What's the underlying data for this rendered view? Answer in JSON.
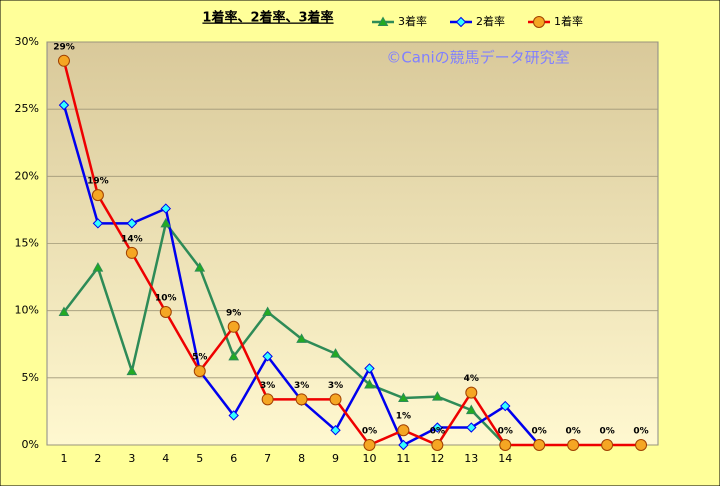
{
  "chart_data": {
    "type": "line",
    "title": "1着率、2着率、3着率",
    "watermark": "©Caniの競馬データ研究室",
    "categories": [
      "1",
      "2",
      "3",
      "4",
      "5",
      "6",
      "7",
      "8",
      "9",
      "10",
      "11",
      "12",
      "13",
      "14",
      null,
      null,
      null,
      null
    ],
    "ylim": [
      0,
      30
    ],
    "yticks": [
      {
        "value": 0,
        "label": "0%"
      },
      {
        "value": 5,
        "label": "5%"
      },
      {
        "value": 10,
        "label": "10%"
      },
      {
        "value": 15,
        "label": "15%"
      },
      {
        "value": 20,
        "label": "20%"
      },
      {
        "value": 25,
        "label": "25%"
      },
      {
        "value": 30,
        "label": "30%"
      }
    ],
    "grid": true,
    "legend": "top-right",
    "series": [
      {
        "name": "3着率",
        "color": "#2e8b57",
        "marker": "triangle",
        "marker_fill": "#22aa22",
        "values": [
          9.9,
          13.2,
          5.5,
          16.5,
          13.2,
          6.6,
          9.9,
          7.9,
          6.8,
          4.5,
          3.5,
          3.6,
          2.6,
          0,
          null,
          null,
          null,
          null
        ]
      },
      {
        "name": "2着率",
        "color": "#0000ee",
        "marker": "diamond",
        "marker_fill": "#33ffff",
        "values": [
          25.3,
          16.5,
          16.5,
          17.6,
          5.5,
          2.2,
          6.6,
          3.3,
          1.1,
          5.7,
          0,
          1.3,
          1.3,
          2.9,
          0,
          null,
          null,
          null
        ]
      },
      {
        "name": "1着率",
        "color": "#ee0000",
        "marker": "circle",
        "marker_fill": "#f5a623",
        "values": [
          28.6,
          18.6,
          14.3,
          9.9,
          5.5,
          8.8,
          3.4,
          3.4,
          3.4,
          0,
          1.1,
          0,
          3.9,
          0,
          0,
          0,
          0,
          0
        ],
        "value_labels": [
          "29%",
          "19%",
          "14%",
          "10%",
          "5%",
          "9%",
          "3%",
          "3%",
          "3%",
          "0%",
          "1%",
          "0%",
          "4%",
          "0%",
          "0%",
          "0%",
          "0%",
          "0%"
        ]
      }
    ]
  }
}
